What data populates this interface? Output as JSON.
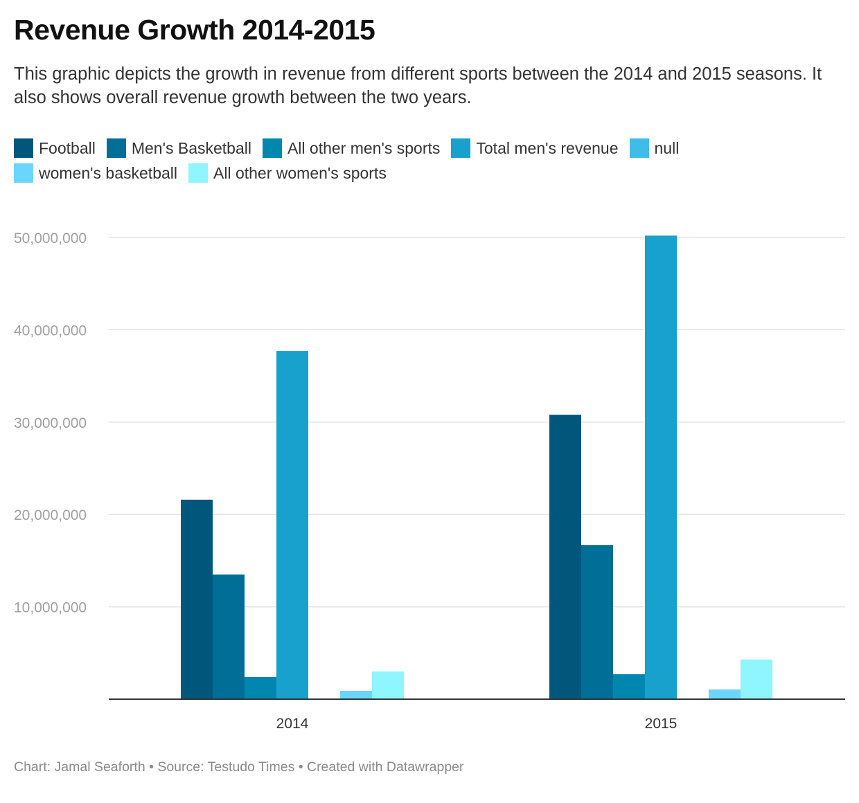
{
  "title": "Revenue Growth 2014-2015",
  "subtitle": "This graphic depicts the growth in revenue from different sports between the 2014 and 2015 seasons. It also shows overall revenue growth between the two years.",
  "footer": "Chart: Jamal Seaforth • Source: Testudo Times • Created with Datawrapper",
  "legend_rows": [
    [
      {
        "label": "Football",
        "color": "#00577c"
      },
      {
        "label": "Men's Basketball",
        "color": "#006e96"
      },
      {
        "label": "All other men's sports",
        "color": "#0087b0"
      },
      {
        "label": "Total men's revenue",
        "color": "#18a1cd"
      },
      {
        "label": "null",
        "color": "#40bce8"
      }
    ],
    [
      {
        "label": "women's basketball",
        "color": "#6bd6fc"
      },
      {
        "label": "All other women's sports",
        "color": "#8ff5ff"
      }
    ]
  ],
  "chart_data": {
    "type": "bar",
    "categories": [
      "2014",
      "2015"
    ],
    "series": [
      {
        "name": "Football",
        "color": "#00577c",
        "values": [
          21600000,
          30800000
        ]
      },
      {
        "name": "Men's Basketball",
        "color": "#006e96",
        "values": [
          13500000,
          16700000
        ]
      },
      {
        "name": "All other men's sports",
        "color": "#0087b0",
        "values": [
          2400000,
          2700000
        ]
      },
      {
        "name": "Total men's revenue",
        "color": "#18a1cd",
        "values": [
          37700000,
          50200000
        ]
      },
      {
        "name": "null",
        "color": "#40bce8",
        "values": [
          null,
          null
        ]
      },
      {
        "name": "women's basketball",
        "color": "#6bd6fc",
        "values": [
          900000,
          1050000
        ]
      },
      {
        "name": "All other women's sports",
        "color": "#8ff5ff",
        "values": [
          3000000,
          4300000
        ]
      }
    ],
    "yticks": [
      "50,000,000",
      "40,000,000",
      "30,000,000",
      "20,000,000",
      "10,000,000"
    ],
    "ytick_values": [
      50000000,
      40000000,
      30000000,
      20000000,
      10000000
    ],
    "ylim": [
      0,
      50000000
    ],
    "grid": true,
    "legend": "top-left"
  }
}
